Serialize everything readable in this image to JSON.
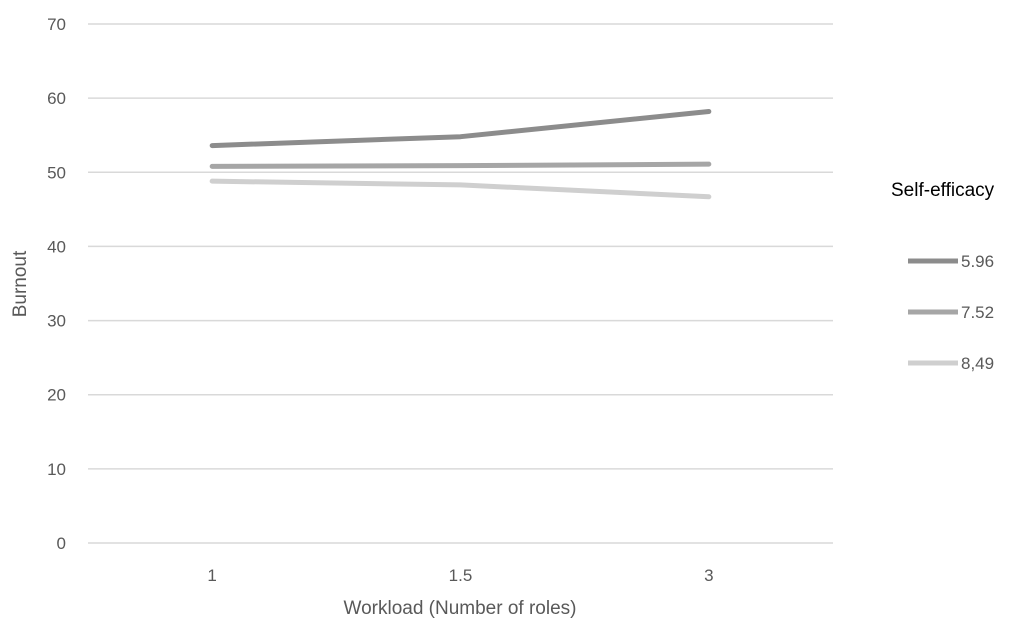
{
  "chart_data": {
    "type": "line",
    "title": "",
    "xlabel": "Workload (Number of roles)",
    "ylabel": "Burnout",
    "categories": [
      "1",
      "1.5",
      "3"
    ],
    "yticks": [
      "0",
      "10",
      "20",
      "30",
      "40",
      "50",
      "60",
      "70"
    ],
    "ylim": [
      0,
      70
    ],
    "grid": true,
    "legend": {
      "title": "Self-efficacy",
      "placement": "right"
    },
    "series": [
      {
        "name": "5.96",
        "values": [
          53.6,
          54.8,
          58.2
        ],
        "color": "#8c8c8c"
      },
      {
        "name": "7.52",
        "values": [
          50.8,
          50.9,
          51.1
        ],
        "color": "#a6a6a6"
      },
      {
        "name": "8,49",
        "values": [
          48.8,
          48.3,
          46.7
        ],
        "color": "#cfcfcf"
      }
    ]
  }
}
